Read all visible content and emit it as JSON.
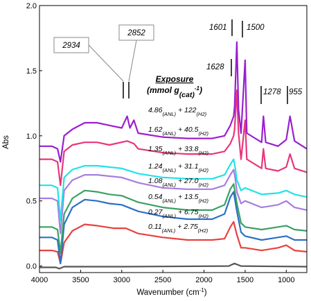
{
  "chart_data": {
    "type": "line",
    "xlabel": "Wavenumber (cm",
    "xlabel_sup": "-1",
    "xlabel_end": ")",
    "ylabel": "Abs",
    "xlim": [
      4000,
      750
    ],
    "ylim": [
      -0.05,
      2.0
    ],
    "x_ticks": [
      4000,
      3500,
      3000,
      2500,
      2000,
      1500,
      1000
    ],
    "y_ticks": [
      "0.0",
      "0.5",
      "1.0",
      "1.5",
      "2.0"
    ],
    "legend_title_line1": "Exposure",
    "legend_title_line2a": "(mmol g",
    "legend_title_line2b": "(cat)",
    "legend_title_line2c": "-1",
    "legend_title_line2d": ")",
    "series": [
      {
        "a": "0.11",
        "b": "2.75",
        "color": "#555555",
        "y": [
          [
            4000,
            -0.01
          ],
          [
            3800,
            -0.01
          ],
          [
            3760,
            -0.02
          ],
          [
            3700,
            -0.005
          ],
          [
            3000,
            -0.005
          ],
          [
            1700,
            0.0
          ],
          [
            1630,
            0.02
          ],
          [
            1550,
            0.0
          ],
          [
            750,
            -0.005
          ]
        ]
      },
      {
        "a": "0.27",
        "b": "6.75",
        "color": "#e8403e",
        "y": [
          [
            4000,
            0.12
          ],
          [
            3850,
            0.12
          ],
          [
            3780,
            0.11
          ],
          [
            3745,
            0.02
          ],
          [
            3700,
            0.18
          ],
          [
            3600,
            0.27
          ],
          [
            3450,
            0.32
          ],
          [
            3300,
            0.31
          ],
          [
            3100,
            0.29
          ],
          [
            2950,
            0.29
          ],
          [
            2800,
            0.25
          ],
          [
            2500,
            0.22
          ],
          [
            2200,
            0.2
          ],
          [
            1900,
            0.2
          ],
          [
            1750,
            0.21
          ],
          [
            1680,
            0.3
          ],
          [
            1640,
            0.34
          ],
          [
            1600,
            0.24
          ],
          [
            1550,
            0.14
          ],
          [
            1500,
            0.14
          ],
          [
            1300,
            0.12
          ],
          [
            1100,
            0.14
          ],
          [
            1000,
            0.16
          ],
          [
            900,
            0.12
          ],
          [
            750,
            0.11
          ]
        ]
      },
      {
        "a": "0.54",
        "b": "13.5",
        "color": "#2a70c8",
        "y": [
          [
            4000,
            0.22
          ],
          [
            3850,
            0.22
          ],
          [
            3780,
            0.2
          ],
          [
            3745,
            0.02
          ],
          [
            3700,
            0.32
          ],
          [
            3600,
            0.45
          ],
          [
            3450,
            0.51
          ],
          [
            3300,
            0.5
          ],
          [
            3150,
            0.48
          ],
          [
            3000,
            0.47
          ],
          [
            2800,
            0.42
          ],
          [
            2500,
            0.38
          ],
          [
            2200,
            0.36
          ],
          [
            1900,
            0.36
          ],
          [
            1750,
            0.4
          ],
          [
            1680,
            0.53
          ],
          [
            1640,
            0.57
          ],
          [
            1600,
            0.42
          ],
          [
            1550,
            0.26
          ],
          [
            1500,
            0.23
          ],
          [
            1300,
            0.2
          ],
          [
            1100,
            0.22
          ],
          [
            1000,
            0.23
          ],
          [
            900,
            0.2
          ],
          [
            750,
            0.2
          ]
        ]
      },
      {
        "a": "1.08",
        "b": "27.0",
        "color": "#3aa064",
        "y": [
          [
            4000,
            0.3
          ],
          [
            3850,
            0.3
          ],
          [
            3780,
            0.28
          ],
          [
            3745,
            0.1
          ],
          [
            3700,
            0.4
          ],
          [
            3600,
            0.52
          ],
          [
            3450,
            0.58
          ],
          [
            3300,
            0.57
          ],
          [
            3150,
            0.55
          ],
          [
            3000,
            0.54
          ],
          [
            2800,
            0.49
          ],
          [
            2500,
            0.45
          ],
          [
            2200,
            0.43
          ],
          [
            1900,
            0.43
          ],
          [
            1750,
            0.47
          ],
          [
            1680,
            0.59
          ],
          [
            1640,
            0.63
          ],
          [
            1600,
            0.48
          ],
          [
            1550,
            0.33
          ],
          [
            1500,
            0.3
          ],
          [
            1300,
            0.28
          ],
          [
            1100,
            0.3
          ],
          [
            1000,
            0.31
          ],
          [
            900,
            0.28
          ],
          [
            750,
            0.27
          ]
        ]
      },
      {
        "a": "1.24",
        "b": "31.1",
        "color": "#a57ee0",
        "y": [
          [
            4000,
            0.52
          ],
          [
            3850,
            0.52
          ],
          [
            3780,
            0.5
          ],
          [
            3745,
            0.25
          ],
          [
            3700,
            0.58
          ],
          [
            3600,
            0.66
          ],
          [
            3450,
            0.7
          ],
          [
            3300,
            0.7
          ],
          [
            3150,
            0.69
          ],
          [
            3000,
            0.68
          ],
          [
            2800,
            0.64
          ],
          [
            2500,
            0.6
          ],
          [
            2200,
            0.59
          ],
          [
            1900,
            0.59
          ],
          [
            1750,
            0.62
          ],
          [
            1680,
            0.7
          ],
          [
            1640,
            0.74
          ],
          [
            1620,
            0.67
          ],
          [
            1600,
            0.57
          ],
          [
            1550,
            0.48
          ],
          [
            1500,
            0.5
          ],
          [
            1300,
            0.45
          ],
          [
            1100,
            0.47
          ],
          [
            1000,
            0.5
          ],
          [
            900,
            0.45
          ],
          [
            750,
            0.43
          ]
        ]
      },
      {
        "a": "1.35",
        "b": "33.8",
        "color": "#22e1e8",
        "y": [
          [
            4000,
            0.62
          ],
          [
            3850,
            0.62
          ],
          [
            3780,
            0.6
          ],
          [
            3745,
            0.35
          ],
          [
            3700,
            0.68
          ],
          [
            3600,
            0.74
          ],
          [
            3450,
            0.77
          ],
          [
            3300,
            0.77
          ],
          [
            3150,
            0.76
          ],
          [
            3000,
            0.75
          ],
          [
            2800,
            0.71
          ],
          [
            2500,
            0.68
          ],
          [
            2200,
            0.67
          ],
          [
            1900,
            0.67
          ],
          [
            1750,
            0.7
          ],
          [
            1680,
            0.78
          ],
          [
            1640,
            0.82
          ],
          [
            1620,
            0.75
          ],
          [
            1600,
            0.66
          ],
          [
            1550,
            0.58
          ],
          [
            1500,
            0.6
          ],
          [
            1300,
            0.55
          ],
          [
            1100,
            0.56
          ],
          [
            1000,
            0.58
          ],
          [
            900,
            0.55
          ],
          [
            750,
            0.53
          ]
        ]
      },
      {
        "a": "1.62",
        "b": "40.5",
        "color": "#e8367a",
        "y": [
          [
            4000,
            0.82
          ],
          [
            3850,
            0.82
          ],
          [
            3780,
            0.8
          ],
          [
            3745,
            0.62
          ],
          [
            3700,
            0.88
          ],
          [
            3600,
            0.93
          ],
          [
            3450,
            0.95
          ],
          [
            3300,
            0.95
          ],
          [
            3150,
            0.93
          ],
          [
            2934,
            0.96
          ],
          [
            2852,
            0.94
          ],
          [
            2800,
            0.9
          ],
          [
            2500,
            0.87
          ],
          [
            2200,
            0.86
          ],
          [
            1900,
            0.86
          ],
          [
            1750,
            0.88
          ],
          [
            1680,
            0.94
          ],
          [
            1640,
            1.0
          ],
          [
            1628,
            1.05
          ],
          [
            1601,
            1.35
          ],
          [
            1580,
            1.02
          ],
          [
            1550,
            0.82
          ],
          [
            1500,
            1.12
          ],
          [
            1480,
            0.82
          ],
          [
            1300,
            0.75
          ],
          [
            1278,
            0.9
          ],
          [
            1250,
            0.75
          ],
          [
            1100,
            0.73
          ],
          [
            1000,
            0.76
          ],
          [
            955,
            0.86
          ],
          [
            900,
            0.75
          ],
          [
            750,
            0.72
          ]
        ]
      },
      {
        "a": "4.86",
        "b": "122",
        "color": "#9a1fd0",
        "y": [
          [
            4000,
            0.92
          ],
          [
            3850,
            0.92
          ],
          [
            3780,
            0.9
          ],
          [
            3745,
            0.8
          ],
          [
            3700,
            1.0
          ],
          [
            3600,
            1.05
          ],
          [
            3450,
            1.1
          ],
          [
            3300,
            1.1
          ],
          [
            3150,
            1.08
          ],
          [
            3000,
            1.06
          ],
          [
            2934,
            1.15
          ],
          [
            2900,
            1.06
          ],
          [
            2852,
            1.12
          ],
          [
            2800,
            1.02
          ],
          [
            2500,
            0.99
          ],
          [
            2200,
            0.98
          ],
          [
            1900,
            0.98
          ],
          [
            1750,
            1.0
          ],
          [
            1680,
            1.08
          ],
          [
            1640,
            1.15
          ],
          [
            1628,
            1.22
          ],
          [
            1601,
            1.72
          ],
          [
            1580,
            1.2
          ],
          [
            1550,
            1.02
          ],
          [
            1500,
            1.58
          ],
          [
            1480,
            1.02
          ],
          [
            1300,
            0.95
          ],
          [
            1278,
            1.15
          ],
          [
            1250,
            0.95
          ],
          [
            1100,
            0.92
          ],
          [
            1000,
            0.97
          ],
          [
            955,
            1.15
          ],
          [
            900,
            0.96
          ],
          [
            750,
            0.9
          ]
        ]
      }
    ],
    "peak_labels": [
      {
        "text": "1601",
        "x": 1601
      },
      {
        "text": "1500",
        "x": 1500
      },
      {
        "text": "1628",
        "x": 1628
      },
      {
        "text": "1278",
        "x": 1278
      },
      {
        "text": "955",
        "x": 955
      }
    ],
    "callouts": [
      {
        "text": "2934",
        "x": 2934
      },
      {
        "text": "2852",
        "x": 2852
      }
    ]
  }
}
